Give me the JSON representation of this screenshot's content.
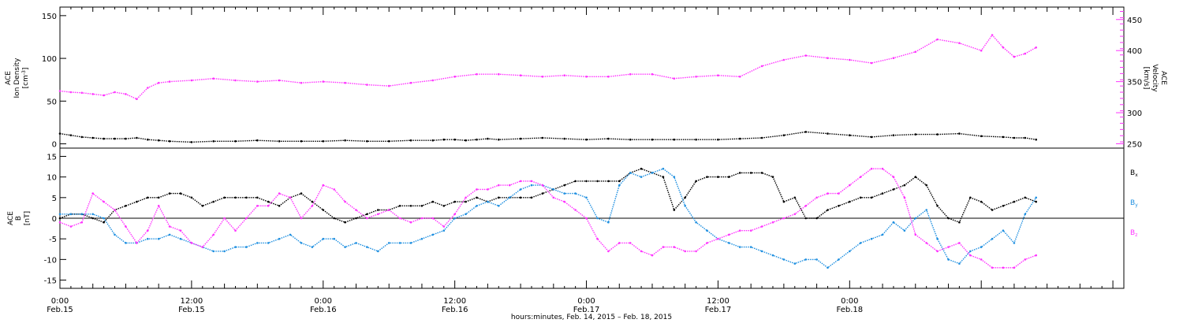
{
  "colors": {
    "density": "#000000",
    "velocity": "#ff33ff",
    "bx": "#000000",
    "by": "#1e8fe0",
    "bz": "#ff33ff"
  },
  "chart_data": [
    {
      "type": "scatter",
      "panel": "plasma",
      "ylabel_left": [
        "ACE",
        "Ion Density",
        "[cm",
        "-3",
        "]"
      ],
      "ylabel_right": [
        "ACE",
        "Velocity",
        "[km/s]"
      ],
      "ylim_left": [
        -5,
        160
      ],
      "ylim_right": [
        243,
        470
      ],
      "yticks_left": [
        "0",
        "50",
        "100",
        "150"
      ],
      "yticks_right": [
        "250",
        "300",
        "350",
        "400",
        "450"
      ],
      "series": [
        {
          "key": "density",
          "axis": "left",
          "x": [
            0,
            1,
            2,
            3,
            4,
            5,
            6,
            7,
            8,
            9,
            10,
            12,
            14,
            16,
            18,
            20,
            22,
            24,
            26,
            28,
            30,
            32,
            34,
            35,
            36,
            37,
            38,
            39,
            40,
            42,
            44,
            46,
            48,
            50,
            52,
            54,
            56,
            58,
            60,
            62,
            64,
            66,
            68,
            70,
            72,
            74,
            76,
            78,
            80,
            82,
            84,
            86,
            87,
            88,
            89
          ],
          "y": [
            12,
            10,
            8,
            7,
            6,
            6,
            6,
            7,
            5,
            4,
            3,
            2,
            3,
            3,
            4,
            3,
            3,
            3,
            4,
            3,
            3,
            4,
            4,
            5,
            5,
            4,
            5,
            6,
            5,
            6,
            7,
            6,
            5,
            6,
            5,
            5,
            5,
            5,
            5,
            6,
            7,
            10,
            14,
            12,
            10,
            8,
            10,
            11,
            11,
            12,
            9,
            8,
            7,
            7,
            5
          ]
        },
        {
          "key": "velocity",
          "axis": "right",
          "x": [
            0,
            1,
            2,
            3,
            4,
            5,
            6,
            7,
            8,
            9,
            10,
            12,
            14,
            16,
            18,
            20,
            22,
            24,
            26,
            28,
            30,
            32,
            34,
            36,
            38,
            40,
            42,
            44,
            46,
            48,
            50,
            52,
            54,
            56,
            58,
            60,
            62,
            64,
            66,
            68,
            70,
            72,
            74,
            76,
            78,
            80,
            82,
            84,
            85,
            86,
            87,
            88,
            89
          ],
          "y": [
            335,
            333,
            332,
            330,
            328,
            333,
            330,
            322,
            340,
            348,
            350,
            352,
            355,
            352,
            350,
            352,
            348,
            350,
            348,
            345,
            343,
            348,
            352,
            358,
            362,
            362,
            360,
            358,
            360,
            358,
            358,
            362,
            362,
            355,
            358,
            360,
            358,
            375,
            385,
            392,
            388,
            385,
            380,
            388,
            398,
            418,
            412,
            400,
            425,
            405,
            390,
            395,
            405
          ]
        }
      ]
    },
    {
      "type": "scatter",
      "panel": "magnetic",
      "ylabel_left": [
        "ACE",
        "B",
        "[nT]"
      ],
      "ylim": [
        -17,
        17
      ],
      "yticks": [
        "-15",
        "-10",
        "-5",
        "0",
        "5",
        "10",
        "15"
      ],
      "legend": [
        {
          "key": "bx",
          "base": "B",
          "sub": "x"
        },
        {
          "key": "by",
          "base": "B",
          "sub": "y"
        },
        {
          "key": "bz",
          "base": "B",
          "sub": "z"
        }
      ],
      "series": [
        {
          "key": "bx",
          "x": [
            0,
            1,
            2,
            3,
            4,
            5,
            6,
            7,
            8,
            9,
            10,
            11,
            12,
            13,
            14,
            15,
            16,
            17,
            18,
            19,
            20,
            21,
            22,
            23,
            24,
            25,
            26,
            27,
            28,
            29,
            30,
            31,
            32,
            33,
            34,
            35,
            36,
            37,
            38,
            39,
            40,
            41,
            42,
            43,
            44,
            45,
            46,
            47,
            48,
            49,
            50,
            51,
            52,
            53,
            54,
            55,
            56,
            57,
            58,
            59,
            60,
            61,
            62,
            63,
            64,
            65,
            66,
            67,
            68,
            69,
            70,
            71,
            72,
            73,
            74,
            75,
            76,
            77,
            78,
            79,
            80,
            81,
            82,
            83,
            84,
            85,
            86,
            87,
            88,
            89
          ],
          "y": [
            0,
            1,
            1,
            0,
            -1,
            2,
            3,
            4,
            5,
            5,
            6,
            6,
            5,
            3,
            4,
            5,
            5,
            5,
            5,
            4,
            3,
            5,
            6,
            4,
            2,
            0,
            -1,
            0,
            1,
            2,
            2,
            3,
            3,
            3,
            4,
            3,
            4,
            4,
            5,
            4,
            5,
            5,
            5,
            5,
            6,
            7,
            8,
            9,
            9,
            9,
            9,
            9,
            11,
            12,
            11,
            10,
            2,
            5,
            9,
            10,
            10,
            10,
            11,
            11,
            11,
            10,
            4,
            5,
            0,
            0,
            2,
            3,
            4,
            5,
            5,
            6,
            7,
            8,
            10,
            8,
            3,
            0,
            -1,
            5,
            4,
            2,
            3,
            4,
            5,
            4
          ]
        },
        {
          "key": "by",
          "x": [
            0,
            1,
            2,
            3,
            4,
            5,
            6,
            7,
            8,
            9,
            10,
            11,
            12,
            13,
            14,
            15,
            16,
            17,
            18,
            19,
            20,
            21,
            22,
            23,
            24,
            25,
            26,
            27,
            28,
            29,
            30,
            31,
            32,
            33,
            34,
            35,
            36,
            37,
            38,
            39,
            40,
            41,
            42,
            43,
            44,
            45,
            46,
            47,
            48,
            49,
            50,
            51,
            52,
            53,
            54,
            55,
            56,
            57,
            58,
            59,
            60,
            61,
            62,
            63,
            64,
            65,
            66,
            67,
            68,
            69,
            70,
            71,
            72,
            73,
            74,
            75,
            76,
            77,
            78,
            79,
            80,
            81,
            82,
            83,
            84,
            85,
            86,
            87,
            88,
            89
          ],
          "y": [
            1,
            1,
            1,
            1,
            0,
            -4,
            -6,
            -6,
            -5,
            -5,
            -4,
            -5,
            -6,
            -7,
            -8,
            -8,
            -7,
            -7,
            -6,
            -6,
            -5,
            -4,
            -6,
            -7,
            -5,
            -5,
            -7,
            -6,
            -7,
            -8,
            -6,
            -6,
            -6,
            -5,
            -4,
            -3,
            0,
            1,
            3,
            4,
            3,
            5,
            7,
            8,
            8,
            7,
            6,
            6,
            5,
            0,
            -1,
            8,
            11,
            10,
            11,
            12,
            10,
            3,
            -1,
            -3,
            -5,
            -6,
            -7,
            -7,
            -8,
            -9,
            -10,
            -11,
            -10,
            -10,
            -12,
            -10,
            -8,
            -6,
            -5,
            -4,
            -1,
            -3,
            0,
            2,
            -5,
            -10,
            -11,
            -8,
            -7,
            -5,
            -3,
            -6,
            1,
            5
          ]
        },
        {
          "key": "bz",
          "x": [
            0,
            1,
            2,
            3,
            4,
            5,
            6,
            7,
            8,
            9,
            10,
            11,
            12,
            13,
            14,
            15,
            16,
            17,
            18,
            19,
            20,
            21,
            22,
            23,
            24,
            25,
            26,
            27,
            28,
            29,
            30,
            31,
            32,
            33,
            34,
            35,
            36,
            37,
            38,
            39,
            40,
            41,
            42,
            43,
            44,
            45,
            46,
            47,
            48,
            49,
            50,
            51,
            52,
            53,
            54,
            55,
            56,
            57,
            58,
            59,
            60,
            61,
            62,
            63,
            64,
            65,
            66,
            67,
            68,
            69,
            70,
            71,
            72,
            73,
            74,
            75,
            76,
            77,
            78,
            79,
            80,
            81,
            82,
            83,
            84,
            85,
            86,
            87,
            88,
            89
          ],
          "y": [
            -1,
            -2,
            -1,
            6,
            4,
            2,
            -2,
            -6,
            -3,
            3,
            -2,
            -3,
            -6,
            -7,
            -4,
            0,
            -3,
            0,
            3,
            3,
            6,
            5,
            0,
            3,
            8,
            7,
            4,
            2,
            0,
            1,
            2,
            0,
            -1,
            0,
            0,
            -2,
            1,
            5,
            7,
            7,
            8,
            8,
            9,
            9,
            8,
            5,
            4,
            2,
            0,
            -5,
            -8,
            -6,
            -6,
            -8,
            -9,
            -7,
            -7,
            -8,
            -8,
            -6,
            -5,
            -4,
            -3,
            -3,
            -2,
            -1,
            0,
            1,
            3,
            5,
            6,
            6,
            8,
            10,
            12,
            12,
            10,
            5,
            -4,
            -6,
            -8,
            -7,
            -6,
            -9,
            -10,
            -12,
            -12,
            -12,
            -10,
            -9
          ]
        }
      ]
    }
  ],
  "x_axis": {
    "ticks": [
      {
        "hour": 0,
        "time": "0:00",
        "date": "Feb.15"
      },
      {
        "hour": 12,
        "time": "12:00",
        "date": "Feb.15"
      },
      {
        "hour": 24,
        "time": "0:00",
        "date": "Feb.16"
      },
      {
        "hour": 36,
        "time": "12:00",
        "date": "Feb.16"
      },
      {
        "hour": 48,
        "time": "0:00",
        "date": "Feb.17"
      },
      {
        "hour": 60,
        "time": "12:00",
        "date": "Feb.17"
      },
      {
        "hour": 72,
        "time": "0:00",
        "date": "Feb.18"
      }
    ],
    "xlim": [
      0,
      97
    ],
    "label": "hours:minutes, Feb. 14, 2015 – Feb. 18, 2015"
  }
}
